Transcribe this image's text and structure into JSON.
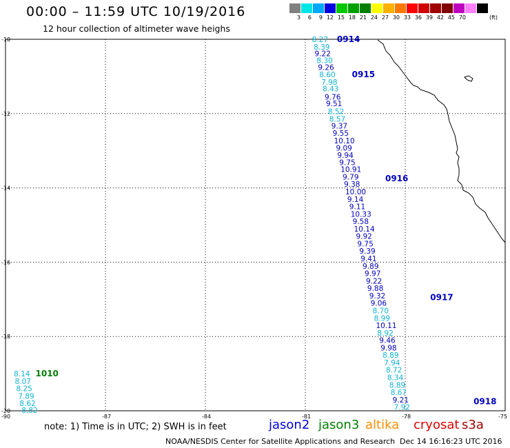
{
  "title": "00:00 – 11:59 UTC 10/19/2016",
  "subtitle": "12 hour collection of altimeter wave heighs",
  "legend": {
    "unit": "(ft)",
    "colors": [
      "#808080",
      "#00e5e5",
      "#00a8ff",
      "#0000e0",
      "#00c800",
      "#00a000",
      "#008000",
      "#ffff00",
      "#ffb000",
      "#ff7800",
      "#ff0000",
      "#d00000",
      "#a00000",
      "#800000",
      "#c000c0",
      "#ff80ff",
      "#000000"
    ],
    "labels": [
      "3",
      "6",
      "9",
      "12",
      "15",
      "18",
      "21",
      "24",
      "27",
      "30",
      "33",
      "36",
      "39",
      "42",
      "45",
      "70"
    ]
  },
  "axes": {
    "lat_ticks": [
      "-10",
      "-12",
      "-14",
      "-16",
      "-18",
      "-20"
    ],
    "lon_ticks": [
      "-90",
      "-87",
      "-84",
      "-81",
      "-78",
      "-75"
    ]
  },
  "colors": {
    "light": "#0fb4d2",
    "dark": "#0000c0",
    "pass_green": "#008000"
  },
  "passes": [
    {
      "label": "0914",
      "lat": -10.0,
      "lon": -80.05,
      "color": "dark"
    },
    {
      "label": "0915",
      "lat": -10.95,
      "lon": -79.6,
      "color": "dark"
    },
    {
      "label": "0916",
      "lat": -13.75,
      "lon": -78.6,
      "color": "dark"
    },
    {
      "label": "0917",
      "lat": -16.95,
      "lon": -77.25,
      "color": "dark"
    },
    {
      "label": "0918",
      "lat": -19.75,
      "lon": -75.95,
      "color": "dark"
    },
    {
      "label": "1010",
      "lat": -19.0,
      "lon": -89.1,
      "color": "green"
    }
  ],
  "observations": [
    {
      "v": "8.27",
      "lat": -10.0,
      "lon": -80.8,
      "c": "light"
    },
    {
      "v": "8.39",
      "lat": -10.2,
      "lon": -80.75,
      "c": "light"
    },
    {
      "v": "9.22",
      "lat": -10.38,
      "lon": -80.72,
      "c": "dark"
    },
    {
      "v": "8.30",
      "lat": -10.57,
      "lon": -80.66,
      "c": "light"
    },
    {
      "v": "9.26",
      "lat": -10.75,
      "lon": -80.62,
      "c": "dark"
    },
    {
      "v": "8.60",
      "lat": -10.95,
      "lon": -80.58,
      "c": "light"
    },
    {
      "v": "7.98",
      "lat": -11.15,
      "lon": -80.52,
      "c": "light"
    },
    {
      "v": "8.43",
      "lat": -11.33,
      "lon": -80.48,
      "c": "light"
    },
    {
      "v": "9.76",
      "lat": -11.55,
      "lon": -80.42,
      "c": "dark"
    },
    {
      "v": "9.51",
      "lat": -11.73,
      "lon": -80.38,
      "c": "dark"
    },
    {
      "v": "8.52",
      "lat": -11.94,
      "lon": -80.32,
      "c": "light"
    },
    {
      "v": "8.57",
      "lat": -12.14,
      "lon": -80.28,
      "c": "light"
    },
    {
      "v": "9.37",
      "lat": -12.33,
      "lon": -80.22,
      "c": "dark"
    },
    {
      "v": "9.55",
      "lat": -12.52,
      "lon": -80.18,
      "c": "dark"
    },
    {
      "v": "10.10",
      "lat": -12.73,
      "lon": -80.14,
      "c": "dark"
    },
    {
      "v": "9.09",
      "lat": -12.92,
      "lon": -80.08,
      "c": "dark"
    },
    {
      "v": "9.94",
      "lat": -13.12,
      "lon": -80.04,
      "c": "dark"
    },
    {
      "v": "9.75",
      "lat": -13.31,
      "lon": -79.98,
      "c": "dark"
    },
    {
      "v": "10.91",
      "lat": -13.5,
      "lon": -79.94,
      "c": "dark"
    },
    {
      "v": "9.79",
      "lat": -13.7,
      "lon": -79.88,
      "c": "dark"
    },
    {
      "v": "9.38",
      "lat": -13.9,
      "lon": -79.84,
      "c": "dark"
    },
    {
      "v": "10.00",
      "lat": -14.1,
      "lon": -79.8,
      "c": "dark"
    },
    {
      "v": "9.14",
      "lat": -14.3,
      "lon": -79.74,
      "c": "dark"
    },
    {
      "v": "9.11",
      "lat": -14.5,
      "lon": -79.68,
      "c": "dark"
    },
    {
      "v": "10.33",
      "lat": -14.7,
      "lon": -79.64,
      "c": "dark"
    },
    {
      "v": "9.58",
      "lat": -14.9,
      "lon": -79.58,
      "c": "dark"
    },
    {
      "v": "10.14",
      "lat": -15.1,
      "lon": -79.54,
      "c": "dark"
    },
    {
      "v": "9.92",
      "lat": -15.3,
      "lon": -79.48,
      "c": "dark"
    },
    {
      "v": "9.75",
      "lat": -15.5,
      "lon": -79.44,
      "c": "dark"
    },
    {
      "v": "9.39",
      "lat": -15.7,
      "lon": -79.38,
      "c": "dark"
    },
    {
      "v": "9.41",
      "lat": -15.9,
      "lon": -79.34,
      "c": "dark"
    },
    {
      "v": "9.89",
      "lat": -16.1,
      "lon": -79.28,
      "c": "dark"
    },
    {
      "v": "9.97",
      "lat": -16.3,
      "lon": -79.22,
      "c": "dark"
    },
    {
      "v": "9.22",
      "lat": -16.5,
      "lon": -79.18,
      "c": "dark"
    },
    {
      "v": "9.88",
      "lat": -16.7,
      "lon": -79.14,
      "c": "dark"
    },
    {
      "v": "9.32",
      "lat": -16.9,
      "lon": -79.08,
      "c": "dark"
    },
    {
      "v": "9.06",
      "lat": -17.1,
      "lon": -79.04,
      "c": "dark"
    },
    {
      "v": "8.70",
      "lat": -17.3,
      "lon": -78.98,
      "c": "light"
    },
    {
      "v": "8.99",
      "lat": -17.5,
      "lon": -78.94,
      "c": "light"
    },
    {
      "v": "10.11",
      "lat": -17.7,
      "lon": -78.88,
      "c": "dark"
    },
    {
      "v": "8.92",
      "lat": -17.9,
      "lon": -78.84,
      "c": "light"
    },
    {
      "v": "9.46",
      "lat": -18.1,
      "lon": -78.78,
      "c": "dark"
    },
    {
      "v": "9.98",
      "lat": -18.3,
      "lon": -78.74,
      "c": "dark"
    },
    {
      "v": "8.89",
      "lat": -18.5,
      "lon": -78.68,
      "c": "light"
    },
    {
      "v": "7.94",
      "lat": -18.7,
      "lon": -78.64,
      "c": "light"
    },
    {
      "v": "8.72",
      "lat": -18.9,
      "lon": -78.58,
      "c": "light"
    },
    {
      "v": "8.34",
      "lat": -19.1,
      "lon": -78.54,
      "c": "light"
    },
    {
      "v": "8.89",
      "lat": -19.3,
      "lon": -78.48,
      "c": "light"
    },
    {
      "v": "8.67",
      "lat": -19.5,
      "lon": -78.44,
      "c": "light"
    },
    {
      "v": "9.21",
      "lat": -19.7,
      "lon": -78.38,
      "c": "dark"
    },
    {
      "v": "7.92",
      "lat": -19.9,
      "lon": -78.34,
      "c": "light"
    },
    {
      "v": "8.14",
      "lat": -19.0,
      "lon": -89.75,
      "c": "light"
    },
    {
      "v": "8.07",
      "lat": -19.2,
      "lon": -89.72,
      "c": "light"
    },
    {
      "v": "8.25",
      "lat": -19.4,
      "lon": -89.68,
      "c": "light"
    },
    {
      "v": "7.89",
      "lat": -19.6,
      "lon": -89.62,
      "c": "light"
    },
    {
      "v": "8.62",
      "lat": -19.8,
      "lon": -89.58,
      "c": "light"
    },
    {
      "v": "8.82",
      "lat": -19.98,
      "lon": -89.52,
      "c": "light"
    }
  ],
  "note": "note: 1) Time is in UTC; 2) SWH is in feet",
  "satellites": [
    {
      "name": "jason2",
      "color": "#0000e0"
    },
    {
      "name": "jason3",
      "color": "#008000"
    },
    {
      "name": "altika",
      "color": "#ff8c00"
    },
    {
      "name": "cryosat",
      "color": "#e00000"
    },
    {
      "name": "s3a",
      "color": "#a00000"
    }
  ],
  "footer": {
    "left": "NOAA/NESDIS Center for Satellite Applications and Research",
    "right": "Dec 14 16:16:23 UTC 2016"
  }
}
